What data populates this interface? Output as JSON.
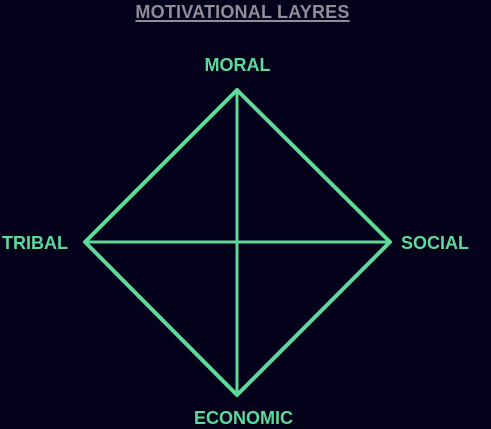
{
  "title": "MOTIVATIONAL LAYRES",
  "labels": {
    "top": "MORAL",
    "left": "TRIBAL",
    "right": "SOCIAL",
    "bottom": "ECONOMIC"
  },
  "colors": {
    "background": "#04021a",
    "accent": "#5ed99a",
    "title": "#8f8d98"
  }
}
